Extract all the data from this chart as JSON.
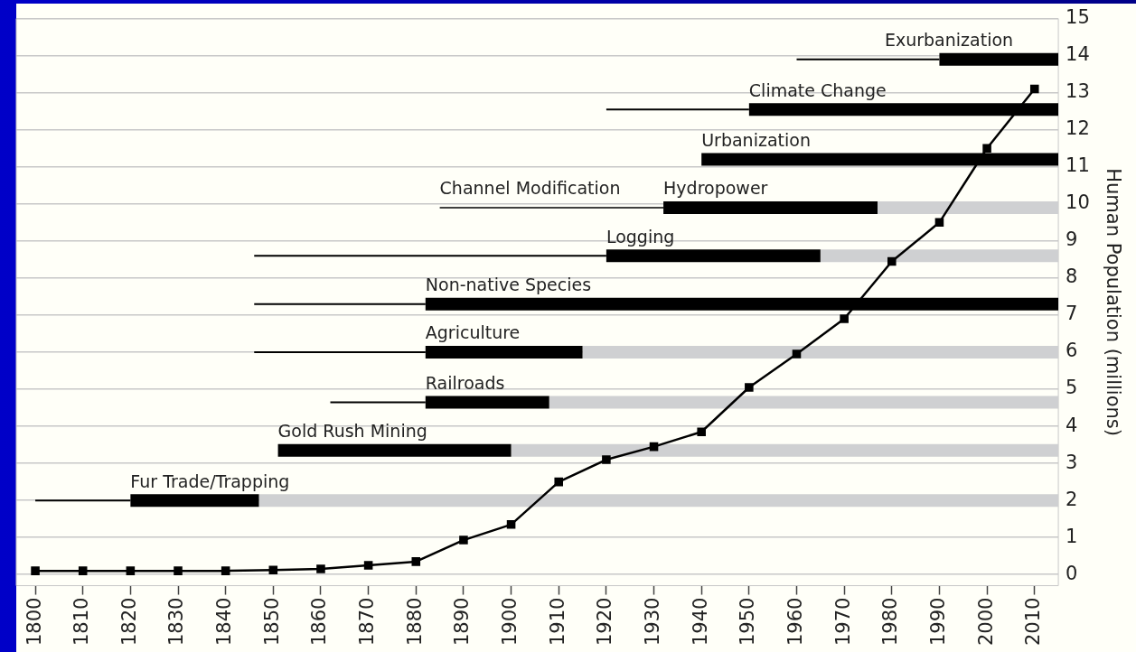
{
  "chart_data": {
    "type": "line",
    "ylabel": "Human Population (millions)",
    "xlim": [
      1796,
      2015
    ],
    "xticks": [
      1800,
      1810,
      1820,
      1830,
      1840,
      1850,
      1860,
      1870,
      1880,
      1890,
      1900,
      1910,
      1920,
      1930,
      1940,
      1950,
      1960,
      1970,
      1980,
      1990,
      2000,
      2010
    ],
    "ylim": [
      -0.3,
      15
    ],
    "yticks": [
      0,
      1,
      2,
      3,
      4,
      5,
      6,
      7,
      8,
      9,
      10,
      11,
      12,
      13,
      14,
      15
    ],
    "grid": "y",
    "legend": false,
    "series": [
      {
        "marker": "square",
        "color": "#000000",
        "x": [
          1800,
          1810,
          1820,
          1830,
          1840,
          1850,
          1860,
          1870,
          1880,
          1890,
          1900,
          1910,
          1920,
          1930,
          1940,
          1950,
          1960,
          1970,
          1980,
          1990,
          2000,
          2010
        ],
        "values": [
          0.1,
          0.1,
          0.1,
          0.1,
          0.1,
          0.12,
          0.15,
          0.25,
          0.35,
          0.93,
          1.35,
          2.5,
          3.1,
          3.45,
          3.85,
          5.05,
          5.95,
          6.9,
          8.45,
          9.5,
          11.5,
          13.1
        ]
      },
      {
        "type": "line",
        "color": "#000000",
        "x": [
          1800,
          1820
        ],
        "values": [
          2,
          2
        ]
      },
      {
        "type": "step",
        "name": "Fur Trade/Trapping",
        "color": "#000000",
        "x": [
          1820,
          1847
        ],
        "values": [
          2,
          2
        ]
      },
      {
        "type": "step",
        "color": "#cfd0d2",
        "x": [
          1847,
          2015
        ],
        "values": [
          2,
          2
        ]
      },
      {
        "type": "step",
        "name": "Gold Rush Mining",
        "color": "#000000",
        "x": [
          1851,
          1900
        ],
        "values": [
          3.35,
          3.35
        ]
      },
      {
        "type": "step",
        "color": "#cfd0d2",
        "x": [
          1900,
          2015
        ],
        "values": [
          3.35,
          3.35
        ]
      },
      {
        "type": "line",
        "color": "#000000",
        "x": [
          1862,
          1882
        ],
        "values": [
          4.65,
          4.65
        ]
      },
      {
        "type": "step",
        "name": "Railroads",
        "color": "#000000",
        "x": [
          1882,
          1908
        ],
        "values": [
          4.65,
          4.65
        ]
      },
      {
        "type": "step",
        "color": "#cfd0d2",
        "x": [
          1908,
          2015
        ],
        "values": [
          4.65,
          4.65
        ]
      },
      {
        "type": "line",
        "color": "#000000",
        "x": [
          1846,
          1882
        ],
        "values": [
          6,
          6
        ]
      },
      {
        "type": "step",
        "name": "Agriculture",
        "color": "#000000",
        "x": [
          1882,
          1915
        ],
        "values": [
          6,
          6
        ]
      },
      {
        "type": "step",
        "color": "#cfd0d2",
        "x": [
          1915,
          2015
        ],
        "values": [
          6,
          6
        ]
      },
      {
        "type": "line",
        "color": "#000000",
        "x": [
          1846,
          1882
        ],
        "values": [
          7.3,
          7.3
        ]
      },
      {
        "type": "step",
        "name": "Non-native Species",
        "color": "#000000",
        "x": [
          1882,
          2015
        ],
        "values": [
          7.3,
          7.3
        ]
      },
      {
        "type": "line",
        "color": "#000000",
        "x": [
          1846,
          1920
        ],
        "values": [
          8.6,
          8.6
        ]
      },
      {
        "type": "step",
        "name": "Logging",
        "color": "#000000",
        "x": [
          1920,
          1965
        ],
        "values": [
          8.6,
          8.6
        ]
      },
      {
        "type": "step",
        "color": "#cfd0d2",
        "x": [
          1965,
          2015
        ],
        "values": [
          8.6,
          8.6
        ]
      },
      {
        "type": "line",
        "name": "Channel Modification",
        "color": "#000000",
        "x": [
          1885,
          1932
        ],
        "values": [
          9.9,
          9.9
        ]
      },
      {
        "type": "step",
        "name": "Hydropower",
        "color": "#000000",
        "x": [
          1932,
          1977
        ],
        "values": [
          9.9,
          9.9
        ]
      },
      {
        "type": "step",
        "color": "#cfd0d2",
        "x": [
          1977,
          2015
        ],
        "values": [
          9.9,
          9.9
        ]
      },
      {
        "type": "step",
        "name": "Urbanization",
        "color": "#000000",
        "x": [
          1940,
          2015
        ],
        "values": [
          11.2,
          11.2
        ]
      },
      {
        "type": "line",
        "color": "#000000",
        "x": [
          1920,
          1950
        ],
        "values": [
          12.55,
          12.55
        ]
      },
      {
        "type": "step",
        "name": "Climate Change",
        "color": "#000000",
        "x": [
          1950,
          2015
        ],
        "values": [
          12.55,
          12.55
        ]
      },
      {
        "type": "line",
        "color": "#000000",
        "x": [
          1960,
          1990
        ],
        "values": [
          13.9,
          13.9
        ]
      },
      {
        "type": "step",
        "name": "Exurbanization",
        "color": "#000000",
        "x": [
          1990,
          2015
        ],
        "values": [
          13.9,
          13.9
        ]
      }
    ]
  }
}
